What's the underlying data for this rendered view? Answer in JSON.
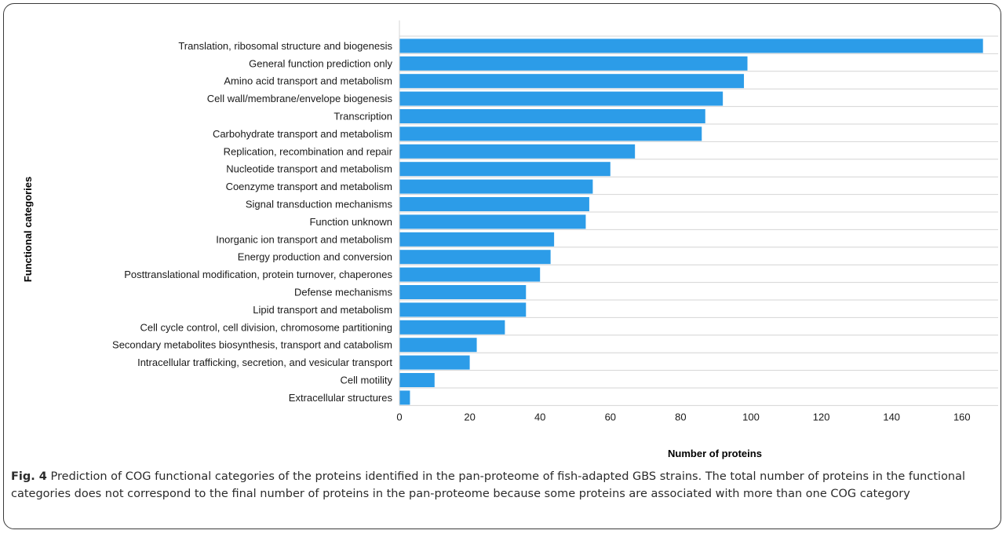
{
  "chart_data": {
    "type": "bar",
    "orientation": "horizontal",
    "categories": [
      "Translation, ribosomal structure and biogenesis",
      "General function prediction only",
      "Amino acid transport and metabolism",
      "Cell wall/membrane/envelope biogenesis",
      "Transcription",
      "Carbohydrate transport and metabolism",
      "Replication, recombination and repair",
      "Nucleotide transport and metabolism",
      "Coenzyme transport and metabolism",
      "Signal transduction mechanisms",
      "Function unknown",
      "Inorganic ion transport and metabolism",
      "Energy production and conversion",
      "Posttranslational modification, protein turnover, chaperones",
      "Defense mechanisms",
      "Lipid transport and metabolism",
      "Cell cycle control, cell division, chromosome partitioning",
      "Secondary metabolites biosynthesis, transport and catabolism",
      "Intracellular trafficking, secretion, and vesicular transport",
      "Cell motility",
      "Extracellular structures"
    ],
    "values": [
      166,
      99,
      98,
      92,
      87,
      86,
      67,
      60,
      55,
      54,
      53,
      44,
      43,
      40,
      36,
      36,
      30,
      22,
      20,
      10,
      3
    ],
    "xlabel": "Number of proteins",
    "ylabel": "Functional categories",
    "xlim": [
      0,
      170
    ],
    "xticks": [
      0,
      20,
      40,
      60,
      80,
      100,
      120,
      140,
      160
    ],
    "grid": "horizontal",
    "bar_color": "#2c9ce8",
    "grid_color": "#d4d4d4"
  },
  "caption": {
    "label": "Fig. 4",
    "text": " Prediction of COG functional categories of the proteins identified in the pan-proteome of fish-adapted GBS strains. The total number of proteins in the functional categories does not correspond to the final number of proteins in the pan-proteome because some proteins are associated with more than one COG category"
  }
}
